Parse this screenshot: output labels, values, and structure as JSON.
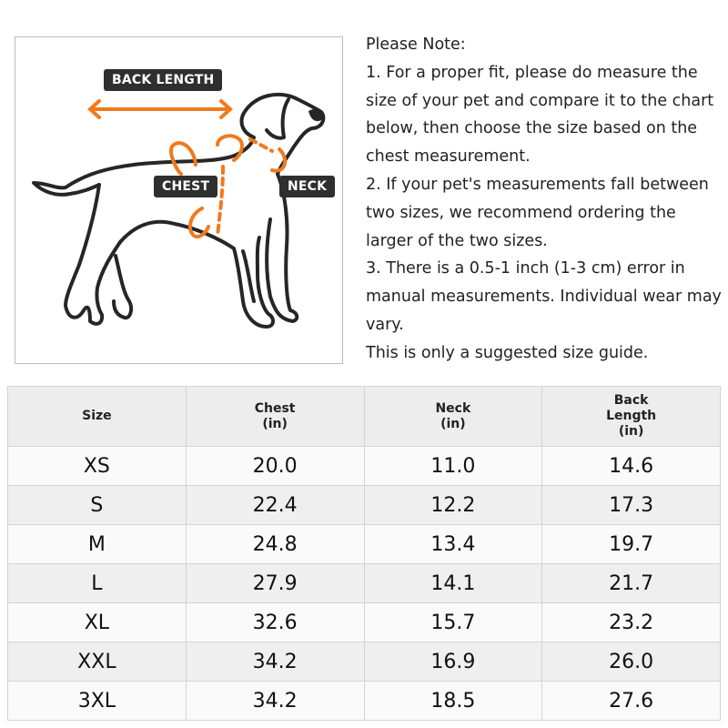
{
  "illustration": {
    "labels": {
      "back_length": "BACK LENGTH",
      "chest": "CHEST",
      "neck": "NECK"
    },
    "arrow_color": "#f07a1c",
    "label_bg": "#2f2f2f"
  },
  "note": {
    "heading": "Please Note:",
    "items": [
      "1. For a proper fit, please do measure the size of your pet and compare it to the chart below, then choose the size based on the chest measurement.",
      "2. If your pet's measurements fall between two sizes, we recommend ordering the larger of the two sizes.",
      "3. There is a 0.5-1 inch (1-3 cm) error in manual measurements. Individual wear may vary.",
      "This is only a suggested size guide."
    ]
  },
  "table": {
    "headers": [
      {
        "line1": "Size",
        "line2": "",
        "line3": ""
      },
      {
        "line1": "Chest",
        "line2": "(in)",
        "line3": ""
      },
      {
        "line1": "Neck",
        "line2": "(in)",
        "line3": ""
      },
      {
        "line1": "Back",
        "line2": "Length",
        "line3": "(in)"
      }
    ],
    "rows": [
      [
        "XS",
        "20.0",
        "11.0",
        "14.6"
      ],
      [
        "S",
        "22.4",
        "12.2",
        "17.3"
      ],
      [
        "M",
        "24.8",
        "13.4",
        "19.7"
      ],
      [
        "L",
        "27.9",
        "14.1",
        "21.7"
      ],
      [
        "XL",
        "32.6",
        "15.7",
        "23.2"
      ],
      [
        "XXL",
        "34.2",
        "16.9",
        "26.0"
      ],
      [
        "3XL",
        "34.2",
        "18.5",
        "27.6"
      ]
    ]
  }
}
